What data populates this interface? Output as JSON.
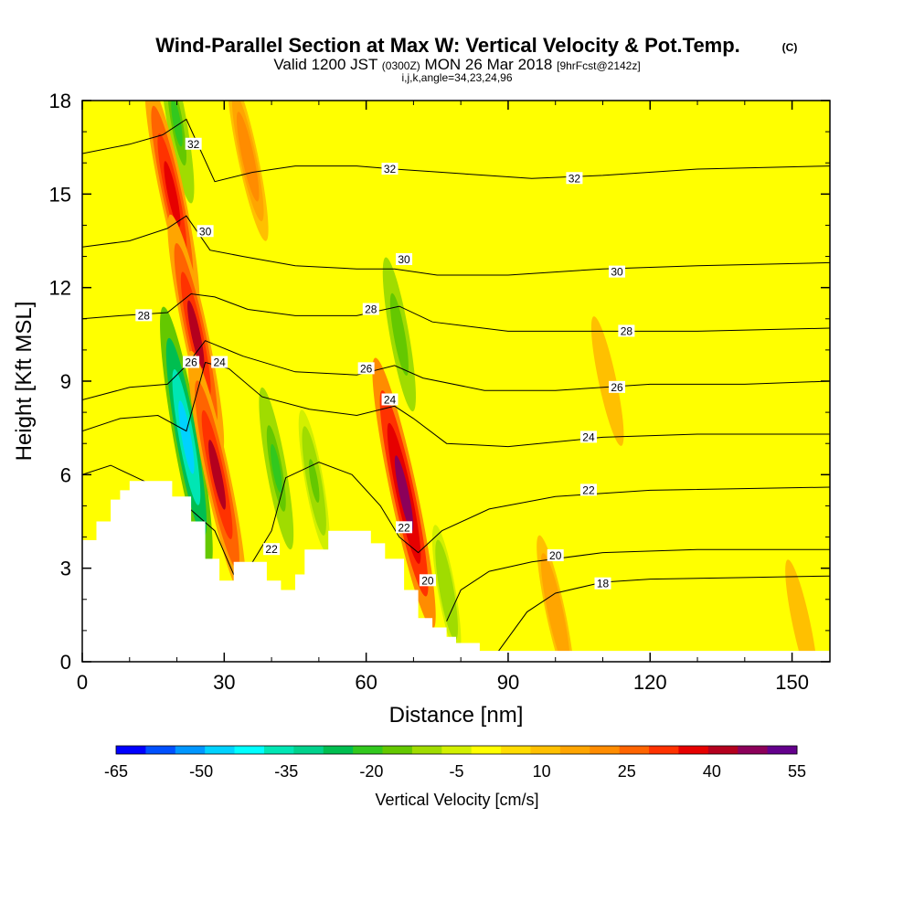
{
  "chart_data": {
    "type": "heatmap",
    "title": "Wind-Parallel Section at Max W: Vertical Velocity & Pot.Temp.",
    "title_suffix": "(C)",
    "subtitle_parts": [
      "Valid 1200 JST",
      "(0300Z)",
      "MON 26 Mar 2018",
      "[9hrFcst@2142z]"
    ],
    "subtitle_2": "i,j,k,angle=34,23,24,96",
    "xlabel": "Distance [nm]",
    "ylabel": "Height [Kft MSL]",
    "xlim": [
      0,
      158
    ],
    "ylim": [
      0,
      18
    ],
    "x_ticks": [
      0,
      30,
      60,
      90,
      120,
      150
    ],
    "y_ticks": [
      0,
      3,
      6,
      9,
      12,
      15,
      18
    ],
    "grid": false,
    "colorbar": {
      "label": "Vertical Velocity [cm/s]",
      "tick_labels": [
        -65,
        -50,
        -35,
        -20,
        -5,
        10,
        25,
        40,
        55
      ],
      "colors": [
        "#0000ff",
        "#0050ff",
        "#0096ff",
        "#00d2ff",
        "#00ffff",
        "#00e6b4",
        "#00d28c",
        "#00be50",
        "#32c81e",
        "#64c800",
        "#a0dc00",
        "#d2f000",
        "#ffff00",
        "#ffdc00",
        "#ffc000",
        "#ffa500",
        "#ff8c00",
        "#ff6400",
        "#ff3200",
        "#e60000",
        "#b4001e",
        "#8c005a",
        "#64008c"
      ]
    },
    "velocity_features": [
      {
        "kind": "downdraft",
        "x": 22,
        "y": 7.2,
        "value": -45
      },
      {
        "kind": "downdraft",
        "x": 20,
        "y": 17.3,
        "value": -20
      },
      {
        "kind": "downdraft",
        "x": 41,
        "y": 6.2,
        "value": -20
      },
      {
        "kind": "downdraft",
        "x": 49,
        "y": 5.8,
        "value": -15
      },
      {
        "kind": "downdraft",
        "x": 67,
        "y": 10.5,
        "value": -18
      },
      {
        "kind": "downdraft",
        "x": 77,
        "y": 2.3,
        "value": -12
      },
      {
        "kind": "updraft",
        "x": 19,
        "y": 15,
        "value": 38
      },
      {
        "kind": "updraft",
        "x": 24,
        "y": 10.5,
        "value": 40
      },
      {
        "kind": "updraft",
        "x": 28.5,
        "y": 6,
        "value": 42
      },
      {
        "kind": "updraft",
        "x": 68,
        "y": 5.4,
        "value": 48
      },
      {
        "kind": "updraft",
        "x": 35,
        "y": 16.2,
        "value": 22
      },
      {
        "kind": "updraft",
        "x": 111,
        "y": 9,
        "value": 12
      },
      {
        "kind": "updraft",
        "x": 100,
        "y": 1.6,
        "value": 18
      },
      {
        "kind": "updraft",
        "x": 152,
        "y": 1.2,
        "value": 12
      }
    ],
    "terrain": [
      [
        0,
        3.9
      ],
      [
        3,
        3.9
      ],
      [
        3,
        4.5
      ],
      [
        6,
        4.5
      ],
      [
        6,
        5.2
      ],
      [
        8,
        5.2
      ],
      [
        8,
        5.5
      ],
      [
        10,
        5.5
      ],
      [
        10,
        5.8
      ],
      [
        13,
        5.8
      ],
      [
        13,
        5.8
      ],
      [
        19,
        5.8
      ],
      [
        19,
        5.3
      ],
      [
        23,
        5.3
      ],
      [
        23,
        4.5
      ],
      [
        26,
        4.5
      ],
      [
        26,
        3.3
      ],
      [
        29,
        3.3
      ],
      [
        29,
        2.6
      ],
      [
        32,
        2.6
      ],
      [
        32,
        3.2
      ],
      [
        39,
        3.2
      ],
      [
        39,
        2.6
      ],
      [
        42,
        2.6
      ],
      [
        42,
        2.3
      ],
      [
        45,
        2.3
      ],
      [
        45,
        2.8
      ],
      [
        47,
        2.8
      ],
      [
        47,
        3.6
      ],
      [
        52,
        3.6
      ],
      [
        52,
        4.2
      ],
      [
        61,
        4.2
      ],
      [
        61,
        3.8
      ],
      [
        64,
        3.8
      ],
      [
        64,
        3.3
      ],
      [
        68,
        3.3
      ],
      [
        68,
        2.3
      ],
      [
        71,
        2.3
      ],
      [
        71,
        1.4
      ],
      [
        74,
        1.4
      ],
      [
        74,
        1.1
      ],
      [
        77,
        1.1
      ],
      [
        77,
        0.8
      ],
      [
        79,
        0.8
      ],
      [
        79,
        0.6
      ],
      [
        84,
        0.6
      ],
      [
        84,
        0.35
      ],
      [
        158,
        0.35
      ]
    ],
    "isentropes": [
      {
        "level": 18,
        "points": [
          [
            88,
            0.35
          ],
          [
            94,
            1.6
          ],
          [
            100,
            2.2
          ],
          [
            110,
            2.55
          ],
          [
            120,
            2.65
          ],
          [
            140,
            2.7
          ],
          [
            158,
            2.75
          ]
        ]
      },
      {
        "level": 20,
        "points": [
          [
            77,
            1.3
          ],
          [
            80,
            2.3
          ],
          [
            86,
            2.9
          ],
          [
            95,
            3.2
          ],
          [
            110,
            3.5
          ],
          [
            130,
            3.6
          ],
          [
            158,
            3.6
          ]
        ]
      },
      {
        "level": 22,
        "points": [
          [
            0,
            6.0
          ],
          [
            6,
            6.3
          ],
          [
            13,
            5.8
          ],
          [
            22,
            5.0
          ],
          [
            28,
            4.2
          ],
          [
            32,
            2.8
          ],
          [
            36,
            3.2
          ],
          [
            40,
            4.2
          ],
          [
            43,
            5.9
          ],
          [
            50,
            6.4
          ],
          [
            57,
            6.0
          ],
          [
            63,
            5.0
          ],
          [
            67,
            4.0
          ],
          [
            71,
            3.5
          ],
          [
            76,
            4.2
          ],
          [
            86,
            4.9
          ],
          [
            100,
            5.3
          ],
          [
            120,
            5.5
          ],
          [
            158,
            5.6
          ]
        ]
      },
      {
        "level": 24,
        "points": [
          [
            0,
            7.4
          ],
          [
            8,
            7.8
          ],
          [
            16,
            7.9
          ],
          [
            22,
            7.4
          ],
          [
            26,
            9.6
          ],
          [
            31,
            9.4
          ],
          [
            38,
            8.5
          ],
          [
            48,
            8.1
          ],
          [
            58,
            7.9
          ],
          [
            66,
            8.2
          ],
          [
            70,
            7.8
          ],
          [
            77,
            7.0
          ],
          [
            90,
            6.9
          ],
          [
            110,
            7.2
          ],
          [
            130,
            7.3
          ],
          [
            158,
            7.3
          ]
        ]
      },
      {
        "level": 26,
        "points": [
          [
            0,
            8.4
          ],
          [
            10,
            8.8
          ],
          [
            18,
            8.9
          ],
          [
            22,
            9.5
          ],
          [
            26,
            10.3
          ],
          [
            34,
            9.8
          ],
          [
            45,
            9.3
          ],
          [
            58,
            9.2
          ],
          [
            66,
            9.5
          ],
          [
            72,
            9.1
          ],
          [
            85,
            8.7
          ],
          [
            100,
            8.7
          ],
          [
            120,
            8.9
          ],
          [
            140,
            8.9
          ],
          [
            158,
            9.0
          ]
        ]
      },
      {
        "level": 28,
        "points": [
          [
            0,
            11.0
          ],
          [
            8,
            11.1
          ],
          [
            18,
            11.2
          ],
          [
            23,
            11.8
          ],
          [
            28,
            11.7
          ],
          [
            35,
            11.3
          ],
          [
            45,
            11.1
          ],
          [
            58,
            11.1
          ],
          [
            67,
            11.4
          ],
          [
            74,
            10.9
          ],
          [
            90,
            10.6
          ],
          [
            110,
            10.6
          ],
          [
            130,
            10.6
          ],
          [
            158,
            10.7
          ]
        ]
      },
      {
        "level": 30,
        "points": [
          [
            0,
            13.3
          ],
          [
            10,
            13.5
          ],
          [
            18,
            13.9
          ],
          [
            22,
            14.3
          ],
          [
            27,
            13.2
          ],
          [
            34,
            13.0
          ],
          [
            45,
            12.7
          ],
          [
            58,
            12.6
          ],
          [
            66,
            12.6
          ],
          [
            75,
            12.4
          ],
          [
            90,
            12.4
          ],
          [
            110,
            12.6
          ],
          [
            130,
            12.7
          ],
          [
            158,
            12.8
          ]
        ]
      },
      {
        "level": 32,
        "points": [
          [
            0,
            16.3
          ],
          [
            10,
            16.6
          ],
          [
            17,
            16.9
          ],
          [
            22,
            17.4
          ],
          [
            28,
            15.4
          ],
          [
            36,
            15.7
          ],
          [
            45,
            15.9
          ],
          [
            58,
            15.9
          ],
          [
            66,
            15.8
          ],
          [
            76,
            15.7
          ],
          [
            95,
            15.5
          ],
          [
            110,
            15.6
          ],
          [
            130,
            15.8
          ],
          [
            158,
            15.9
          ]
        ]
      }
    ],
    "contour_labels": [
      {
        "text": "32",
        "x": 23.5,
        "y": 16.6
      },
      {
        "text": "32",
        "x": 65,
        "y": 15.8
      },
      {
        "text": "32",
        "x": 104,
        "y": 15.5
      },
      {
        "text": "30",
        "x": 26,
        "y": 13.8
      },
      {
        "text": "30",
        "x": 68,
        "y": 12.9
      },
      {
        "text": "30",
        "x": 113,
        "y": 12.5
      },
      {
        "text": "28",
        "x": 13,
        "y": 11.1
      },
      {
        "text": "28",
        "x": 61,
        "y": 11.3
      },
      {
        "text": "28",
        "x": 115,
        "y": 10.6
      },
      {
        "text": "26",
        "x": 23,
        "y": 9.6
      },
      {
        "text": "24",
        "x": 29,
        "y": 9.6
      },
      {
        "text": "26",
        "x": 60,
        "y": 9.4
      },
      {
        "text": "26",
        "x": 113,
        "y": 8.8
      },
      {
        "text": "24",
        "x": 65,
        "y": 8.4
      },
      {
        "text": "24",
        "x": 107,
        "y": 7.2
      },
      {
        "text": "22",
        "x": 40,
        "y": 3.6
      },
      {
        "text": "22",
        "x": 68,
        "y": 4.3
      },
      {
        "text": "22",
        "x": 107,
        "y": 5.5
      },
      {
        "text": "20",
        "x": 73,
        "y": 2.6
      },
      {
        "text": "20",
        "x": 100,
        "y": 3.4
      },
      {
        "text": "18",
        "x": 110,
        "y": 2.5
      }
    ]
  }
}
